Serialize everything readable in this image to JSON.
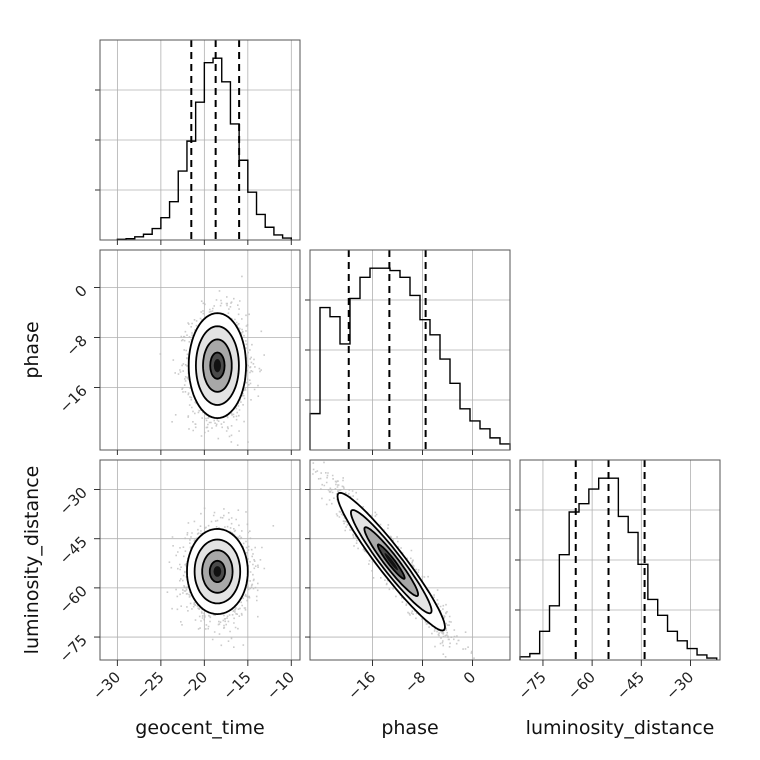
{
  "chart_data": {
    "type": "corner",
    "parameters": [
      "geocent_time",
      "phase",
      "luminosity_distance"
    ],
    "axis_labels": {
      "x": [
        "geocent_time",
        "phase",
        "luminosity_distance"
      ],
      "y": [
        "phase",
        "luminosity_distance"
      ]
    },
    "ranges": {
      "geocent_time": [
        -32,
        -9
      ],
      "phase": [
        -26,
        6
      ],
      "luminosity_distance": [
        -82,
        -21
      ]
    },
    "ticks": {
      "geocent_time": [
        -30,
        -25,
        -20,
        -15,
        -10
      ],
      "phase": [
        -16,
        -8,
        0
      ],
      "luminosity_distance": [
        -75,
        -60,
        -45,
        -30
      ]
    },
    "tick_labels": {
      "geocent_time": [
        "−30",
        "−25",
        "−20",
        "−15",
        "−10"
      ],
      "phase": [
        "−16",
        "−8",
        "0"
      ],
      "luminosity_distance": [
        "−75",
        "−60",
        "−45",
        "−30"
      ]
    },
    "quantiles": {
      "geocent_time": [
        -21.5,
        -18.7,
        -16.0
      ],
      "phase": [
        -19.8,
        -13.3,
        -7.5
      ],
      "luminosity_distance": [
        -65,
        -55,
        -44
      ]
    },
    "histograms": {
      "geocent_time": {
        "bin_edges": [
          -30,
          -29,
          -28,
          -27,
          -26,
          -25,
          -24,
          -23,
          -22,
          -21,
          -20,
          -19,
          -18,
          -17,
          -16,
          -15,
          -14,
          -13,
          -12,
          -11,
          -10
        ],
        "counts": [
          1,
          2,
          5,
          9,
          18,
          35,
          60,
          108,
          155,
          216,
          278,
          285,
          248,
          182,
          125,
          75,
          40,
          20,
          8,
          3
        ]
      },
      "phase": {
        "bin_edges": [
          -26,
          -24.4,
          -22.8,
          -21.2,
          -19.6,
          -18,
          -16.4,
          -14.8,
          -13.2,
          -11.6,
          -10,
          -8.4,
          -6.8,
          -5.2,
          -3.6,
          -2,
          -0.4,
          1.2,
          2.8,
          4.4,
          6
        ],
        "counts": [
          60,
          235,
          220,
          175,
          250,
          285,
          300,
          300,
          296,
          285,
          255,
          215,
          190,
          150,
          110,
          68,
          48,
          35,
          20,
          10
        ]
      },
      "luminosity_distance": {
        "bin_edges": [
          -82,
          -79,
          -76,
          -73,
          -70,
          -67,
          -64,
          -61,
          -58,
          -55,
          -52,
          -49,
          -46,
          -43,
          -40,
          -37,
          -34,
          -31,
          -28,
          -25,
          -22
        ],
        "counts": [
          5,
          10,
          45,
          85,
          165,
          232,
          245,
          268,
          285,
          285,
          225,
          200,
          150,
          95,
          70,
          45,
          30,
          18,
          8,
          3
        ]
      }
    },
    "contours_2d": [
      {
        "x": "geocent_time",
        "y": "phase",
        "center": [
          -18.5,
          -12.5
        ],
        "sigma": [
          1.65,
          4.2
        ],
        "correlation": 0.0,
        "levels": [
          0.5,
          1.0,
          1.5,
          2.0
        ]
      },
      {
        "x": "geocent_time",
        "y": "luminosity_distance",
        "center": [
          -18.5,
          -55
        ],
        "sigma": [
          1.75,
          6.5
        ],
        "correlation": 0.0,
        "levels": [
          0.5,
          1.0,
          1.5,
          2.0
        ]
      },
      {
        "x": "phase",
        "y": "luminosity_distance",
        "center": [
          -13,
          -52
        ],
        "sigma": [
          4.3,
          10.5
        ],
        "correlation": -0.95,
        "levels": [
          0.5,
          1.0,
          1.5,
          2.0
        ]
      }
    ],
    "grid": true,
    "style": {
      "line": "#000000",
      "sample_points": "#b9b9b9",
      "density": "#000000"
    }
  }
}
